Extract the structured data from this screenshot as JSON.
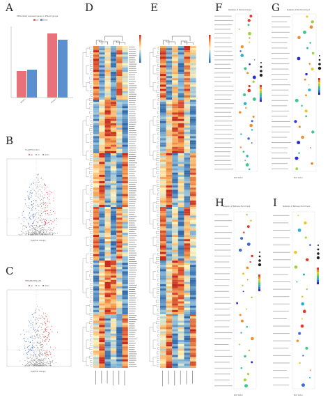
{
  "panels": {
    "A": "A",
    "B": "B",
    "C": "C",
    "D": "D",
    "E": "E",
    "F": "F",
    "G": "G",
    "H": "H",
    "I": "I"
  },
  "panel_a": {
    "title": "Differentially expressed genes in different groups",
    "legend": [
      "Up",
      "Down"
    ],
    "colors": {
      "up": "#e8717a",
      "down": "#5b8fd0"
    },
    "chart_data": {
      "type": "bar",
      "categories": [
        "group1",
        "group2"
      ],
      "series": [
        {
          "name": "Up",
          "values": [
            38,
            92
          ]
        },
        {
          "name": "Down",
          "values": [
            40,
            83
          ]
        }
      ]
    }
  },
  "panel_b": {
    "title": "Hcv&HFD/control",
    "legend": [
      "up",
      "no",
      "down"
    ],
    "xlabel": "log2(Fold change)"
  },
  "panel_c": {
    "title": "HFD&NASH/Fenofib",
    "legend": [
      "up",
      "no",
      "down"
    ],
    "xlabel": "log2(Fold change)"
  },
  "panel_f": {
    "title": "Statistics of GO Enrichment",
    "xlabel": "Rich factor",
    "legend_size": "Gene_number",
    "legend_color": "pvalue"
  },
  "panel_g": {
    "title": "Statistics of GO Enrichment",
    "xlabel": "Rich factor",
    "legend_size": "Gene_number",
    "legend_color": "pvalue"
  },
  "panel_h": {
    "title": "Statistics of Pathway Enrichment",
    "xlabel": "Rich factor",
    "legend_size": "Gene_number",
    "legend_color": "pvalue"
  },
  "panel_i": {
    "title": "Statistics of Pathway Enrichment",
    "xlabel": "Rich factor",
    "legend_size": "Gene_number",
    "legend_color": "pvalue"
  },
  "colors": {
    "heat_high": "#d7301f",
    "heat_mid": "#fee08b",
    "heat_low": "#4575b4",
    "ink": "#333333"
  }
}
